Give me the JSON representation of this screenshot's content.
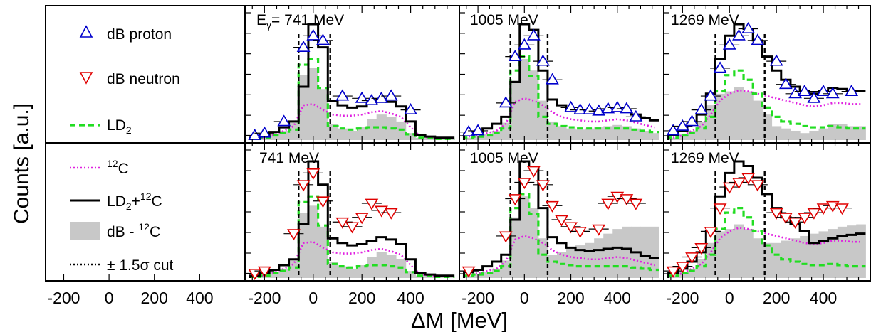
{
  "figure": {
    "ylabel": "Counts [a.u.]",
    "xlabel": "ΔM [MeV]",
    "legend_panel_xticks": [
      "-200",
      "0",
      "200",
      "400"
    ],
    "legend": {
      "dB_proton": "dB proton",
      "dB_neutron": "dB neutron",
      "LD2_main": "LD",
      "LD2_sub": "2",
      "C12_sup": "12",
      "C12_main": "C",
      "sum_main_a": "LD",
      "sum_sub": "2",
      "sum_plus": "+",
      "sum_sup": "12",
      "sum_main_b": "C",
      "diff_main": "dB - ",
      "diff_sup": "12",
      "diff_end": "C",
      "cut_pm": "± 1.5",
      "cut_sigma": "σ",
      "cut_end": " cut"
    },
    "panel_labels": {
      "top_0_prefix": "E",
      "top_0_sub": "γ",
      "top_0_value": "= 741 MeV",
      "top_1": "1005 MeV",
      "top_2": "1269 MeV",
      "bottom_0": "741 MeV",
      "bottom_1": "1005 MeV",
      "bottom_2": "1269 MeV"
    },
    "colors": {
      "proton": "#0000cc",
      "neutron": "#e00000",
      "LD2": "#22dd22",
      "C12": "#e020e0",
      "sum": "#000000",
      "diff_fill": "#c8c8c8"
    }
  },
  "chart_data": [
    {
      "type": "line",
      "panel": "proton 741 MeV",
      "xlim": [
        -280,
        600
      ],
      "xticks": [
        -200,
        0,
        200,
        400
      ],
      "x": [
        -240,
        -200,
        -160,
        -120,
        -80,
        -40,
        0,
        40,
        80,
        120,
        160,
        200,
        240,
        280,
        320,
        360,
        400,
        440,
        480,
        520,
        560
      ],
      "sum": [
        0.02,
        0.04,
        0.07,
        0.11,
        0.16,
        0.46,
        1.0,
        0.8,
        0.34,
        0.3,
        0.28,
        0.29,
        0.32,
        0.35,
        0.33,
        0.29,
        0.16,
        0.04,
        0.03,
        0.02,
        0.02
      ],
      "LD2": [
        0.01,
        0.02,
        0.04,
        0.06,
        0.09,
        0.65,
        0.7,
        0.45,
        0.12,
        0.1,
        0.09,
        0.1,
        0.11,
        0.11,
        0.1,
        0.09,
        0.05,
        0.02,
        0.02,
        0.01,
        0.01
      ],
      "C12": [
        0.01,
        0.02,
        0.05,
        0.08,
        0.12,
        0.3,
        0.31,
        0.26,
        0.22,
        0.21,
        0.21,
        0.22,
        0.24,
        0.25,
        0.23,
        0.2,
        0.11,
        0.03,
        0.02,
        0.02,
        0.01
      ],
      "diff": [
        0.01,
        0.02,
        0.05,
        0.08,
        0.15,
        0.56,
        0.62,
        0.44,
        0.14,
        0.1,
        0.08,
        0.11,
        0.18,
        0.22,
        0.2,
        0.16,
        0.06,
        0.02,
        0.02,
        0.01,
        0.01
      ],
      "markers": {
        "x": [
          -240,
          -200,
          -120,
          -40,
          0,
          40,
          120,
          200,
          240,
          280,
          320,
          400
        ],
        "y": [
          0.04,
          0.06,
          0.16,
          0.8,
          0.9,
          0.86,
          0.38,
          0.36,
          0.34,
          0.36,
          0.38,
          0.26
        ]
      }
    },
    {
      "type": "line",
      "panel": "proton 1005 MeV",
      "xlim": [
        -280,
        600
      ],
      "xticks": [
        -200,
        0,
        200,
        400
      ],
      "x": [
        -240,
        -200,
        -160,
        -120,
        -80,
        -40,
        0,
        40,
        80,
        120,
        160,
        200,
        240,
        280,
        320,
        360,
        400,
        440,
        480,
        520,
        560
      ],
      "sum": [
        0.05,
        0.07,
        0.1,
        0.14,
        0.2,
        0.5,
        1.0,
        0.95,
        0.6,
        0.35,
        0.3,
        0.26,
        0.24,
        0.23,
        0.24,
        0.25,
        0.26,
        0.25,
        0.22,
        0.19,
        0.17
      ],
      "LD2": [
        0.02,
        0.03,
        0.04,
        0.06,
        0.1,
        0.6,
        0.72,
        0.55,
        0.2,
        0.14,
        0.12,
        0.11,
        0.1,
        0.1,
        0.1,
        0.1,
        0.1,
        0.1,
        0.09,
        0.08,
        0.07
      ],
      "C12": [
        0.03,
        0.04,
        0.06,
        0.08,
        0.14,
        0.33,
        0.36,
        0.34,
        0.3,
        0.24,
        0.2,
        0.18,
        0.17,
        0.16,
        0.16,
        0.17,
        0.18,
        0.17,
        0.15,
        0.13,
        0.11
      ],
      "diff": [
        0.02,
        0.03,
        0.05,
        0.08,
        0.15,
        0.52,
        0.7,
        0.6,
        0.34,
        0.16,
        0.12,
        0.1,
        0.09,
        0.1,
        0.11,
        0.12,
        0.13,
        0.12,
        0.1,
        0.08,
        0.06
      ],
      "markers": {
        "x": [
          -240,
          -200,
          -80,
          -40,
          0,
          40,
          80,
          120,
          200,
          240,
          280,
          320,
          360,
          400,
          440,
          480
        ],
        "y": [
          0.07,
          0.08,
          0.32,
          0.72,
          0.82,
          0.9,
          0.68,
          0.52,
          0.28,
          0.26,
          0.26,
          0.25,
          0.27,
          0.28,
          0.27,
          0.2
        ]
      }
    },
    {
      "type": "line",
      "panel": "proton 1269 MeV",
      "xlim": [
        -280,
        600
      ],
      "xticks": [
        -200,
        0,
        200,
        400
      ],
      "x": [
        -240,
        -200,
        -160,
        -120,
        -80,
        -40,
        0,
        40,
        80,
        120,
        160,
        200,
        240,
        280,
        320,
        360,
        400,
        440,
        480,
        520,
        560
      ],
      "sum": [
        0.04,
        0.08,
        0.14,
        0.22,
        0.4,
        0.7,
        0.9,
        1.0,
        0.96,
        0.86,
        0.72,
        0.6,
        0.52,
        0.46,
        0.42,
        0.4,
        0.42,
        0.45,
        0.44,
        0.42,
        0.42
      ],
      "LD2": [
        0.02,
        0.04,
        0.06,
        0.1,
        0.2,
        0.42,
        0.56,
        0.6,
        0.52,
        0.4,
        0.28,
        0.2,
        0.16,
        0.14,
        0.12,
        0.11,
        0.11,
        0.12,
        0.11,
        0.1,
        0.1
      ],
      "C12": [
        0.02,
        0.04,
        0.08,
        0.12,
        0.22,
        0.34,
        0.4,
        0.43,
        0.42,
        0.4,
        0.38,
        0.36,
        0.34,
        0.32,
        0.3,
        0.29,
        0.3,
        0.32,
        0.32,
        0.31,
        0.31
      ],
      "diff": [
        0.02,
        0.05,
        0.08,
        0.16,
        0.3,
        0.4,
        0.42,
        0.46,
        0.42,
        0.34,
        0.22,
        0.12,
        0.1,
        0.08,
        0.06,
        0.08,
        0.1,
        0.14,
        0.14,
        0.12,
        0.12
      ],
      "markers": {
        "x": [
          -240,
          -200,
          -160,
          -120,
          -80,
          -40,
          0,
          40,
          80,
          120,
          200,
          240,
          280,
          320,
          360,
          400,
          440,
          520
        ],
        "y": [
          0.08,
          0.12,
          0.16,
          0.26,
          0.38,
          0.62,
          0.82,
          0.9,
          0.96,
          0.86,
          0.68,
          0.48,
          0.4,
          0.42,
          0.36,
          0.42,
          0.4,
          0.42
        ]
      }
    },
    {
      "type": "line",
      "panel": "neutron 741 MeV",
      "xlim": [
        -280,
        600
      ],
      "xticks": [
        -200,
        0,
        200,
        400
      ],
      "x": [
        -240,
        -200,
        -160,
        -120,
        -80,
        -40,
        0,
        40,
        80,
        120,
        160,
        200,
        240,
        280,
        320,
        360,
        400,
        440,
        480,
        520,
        560
      ],
      "sum": [
        0.02,
        0.04,
        0.07,
        0.11,
        0.16,
        0.46,
        1.0,
        0.8,
        0.34,
        0.3,
        0.28,
        0.29,
        0.32,
        0.35,
        0.33,
        0.29,
        0.16,
        0.04,
        0.03,
        0.02,
        0.02
      ],
      "LD2": [
        0.01,
        0.02,
        0.04,
        0.06,
        0.09,
        0.65,
        0.7,
        0.45,
        0.12,
        0.1,
        0.09,
        0.1,
        0.11,
        0.11,
        0.1,
        0.09,
        0.05,
        0.02,
        0.02,
        0.01,
        0.01
      ],
      "C12": [
        0.01,
        0.02,
        0.05,
        0.08,
        0.12,
        0.3,
        0.31,
        0.26,
        0.22,
        0.21,
        0.21,
        0.22,
        0.24,
        0.25,
        0.23,
        0.2,
        0.11,
        0.03,
        0.02,
        0.02,
        0.01
      ],
      "diff": [
        0.01,
        0.02,
        0.05,
        0.08,
        0.15,
        0.56,
        0.62,
        0.44,
        0.14,
        0.1,
        0.08,
        0.11,
        0.18,
        0.22,
        0.2,
        0.16,
        0.06,
        0.02,
        0.02,
        0.01,
        0.01
      ],
      "markers": {
        "x": [
          -240,
          -200,
          -80,
          -40,
          0,
          40,
          120,
          160,
          200,
          240,
          280,
          320
        ],
        "y": [
          0.04,
          0.06,
          0.38,
          0.8,
          0.9,
          0.66,
          0.48,
          0.44,
          0.52,
          0.64,
          0.58,
          0.56
        ]
      }
    },
    {
      "type": "line",
      "panel": "neutron 1005 MeV",
      "xlim": [
        -280,
        600
      ],
      "xticks": [
        -200,
        0,
        200,
        400
      ],
      "x": [
        -240,
        -200,
        -160,
        -120,
        -80,
        -40,
        0,
        40,
        80,
        120,
        160,
        200,
        240,
        280,
        320,
        360,
        400,
        440,
        480,
        520,
        560
      ],
      "sum": [
        0.05,
        0.07,
        0.1,
        0.14,
        0.2,
        0.5,
        1.0,
        0.95,
        0.6,
        0.35,
        0.3,
        0.26,
        0.24,
        0.23,
        0.24,
        0.25,
        0.26,
        0.25,
        0.22,
        0.19,
        0.17
      ],
      "LD2": [
        0.02,
        0.03,
        0.04,
        0.06,
        0.1,
        0.6,
        0.72,
        0.55,
        0.2,
        0.14,
        0.12,
        0.11,
        0.1,
        0.1,
        0.1,
        0.1,
        0.1,
        0.1,
        0.09,
        0.08,
        0.07
      ],
      "C12": [
        0.03,
        0.04,
        0.06,
        0.08,
        0.14,
        0.33,
        0.36,
        0.34,
        0.3,
        0.24,
        0.2,
        0.18,
        0.17,
        0.16,
        0.16,
        0.17,
        0.18,
        0.17,
        0.15,
        0.13,
        0.11
      ],
      "diff": [
        0.02,
        0.03,
        0.05,
        0.08,
        0.15,
        0.52,
        0.7,
        0.6,
        0.34,
        0.2,
        0.22,
        0.26,
        0.28,
        0.3,
        0.34,
        0.38,
        0.42,
        0.44,
        0.44,
        0.44,
        0.44
      ],
      "markers": {
        "x": [
          -240,
          -80,
          -40,
          0,
          40,
          80,
          120,
          160,
          200,
          240,
          320,
          360,
          400,
          440,
          480
        ],
        "y": [
          0.06,
          0.36,
          0.68,
          0.82,
          0.92,
          0.8,
          0.62,
          0.5,
          0.44,
          0.4,
          0.42,
          0.64,
          0.7,
          0.68,
          0.64
        ]
      }
    },
    {
      "type": "line",
      "panel": "neutron 1269 MeV",
      "xlim": [
        -280,
        600
      ],
      "xticks": [
        -200,
        0,
        200,
        400
      ],
      "x": [
        -240,
        -200,
        -160,
        -120,
        -80,
        -40,
        0,
        40,
        80,
        120,
        160,
        200,
        240,
        280,
        320,
        360,
        400,
        440,
        480,
        520,
        560
      ],
      "sum": [
        0.04,
        0.08,
        0.14,
        0.22,
        0.4,
        0.7,
        0.9,
        1.0,
        0.96,
        0.86,
        0.72,
        0.6,
        0.52,
        0.46,
        0.4,
        0.3,
        0.32,
        0.34,
        0.36,
        0.37,
        0.38
      ],
      "LD2": [
        0.02,
        0.04,
        0.06,
        0.1,
        0.2,
        0.42,
        0.56,
        0.6,
        0.52,
        0.4,
        0.28,
        0.2,
        0.16,
        0.14,
        0.12,
        0.11,
        0.11,
        0.12,
        0.11,
        0.1,
        0.1
      ],
      "C12": [
        0.02,
        0.04,
        0.08,
        0.12,
        0.22,
        0.34,
        0.4,
        0.43,
        0.42,
        0.4,
        0.38,
        0.36,
        0.34,
        0.32,
        0.3,
        0.29,
        0.3,
        0.32,
        0.32,
        0.31,
        0.31
      ],
      "diff": [
        0.02,
        0.05,
        0.08,
        0.16,
        0.3,
        0.4,
        0.42,
        0.46,
        0.42,
        0.34,
        0.3,
        0.3,
        0.32,
        0.34,
        0.36,
        0.38,
        0.4,
        0.42,
        0.44,
        0.45,
        0.46
      ],
      "markers": {
        "x": [
          -240,
          -200,
          -160,
          -120,
          -80,
          -40,
          0,
          40,
          80,
          120,
          200,
          240,
          280,
          320,
          360,
          400,
          440,
          480
        ],
        "y": [
          0.06,
          0.1,
          0.18,
          0.26,
          0.4,
          0.6,
          0.78,
          0.82,
          0.86,
          0.8,
          0.56,
          0.52,
          0.48,
          0.52,
          0.56,
          0.6,
          0.62,
          0.6
        ]
      }
    }
  ]
}
